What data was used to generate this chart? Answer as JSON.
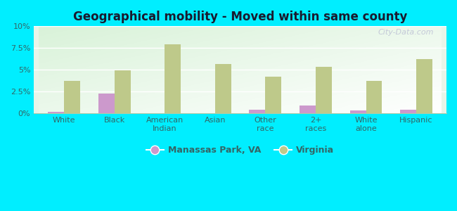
{
  "title": "Geographical mobility - Moved within same county",
  "categories": [
    "White",
    "Black",
    "American\nIndian",
    "Asian",
    "Other\nrace",
    "2+\nraces",
    "White\nalone",
    "Hispanic"
  ],
  "manassas_values": [
    0.2,
    2.3,
    0.0,
    0.0,
    0.4,
    0.9,
    0.3,
    0.4
  ],
  "virginia_values": [
    3.7,
    4.9,
    7.9,
    5.7,
    4.2,
    5.3,
    3.7,
    6.2
  ],
  "manassas_color": "#cc99cc",
  "virginia_color": "#bec98a",
  "background_color": "#00eeff",
  "ylim": [
    0,
    10
  ],
  "yticks": [
    0,
    2.5,
    5.0,
    7.5,
    10.0
  ],
  "ytick_labels": [
    "0%",
    "2.5%",
    "5%",
    "7.5%",
    "10%"
  ],
  "bar_width": 0.32,
  "legend_manassas": "Manassas Park, VA",
  "legend_virginia": "Virginia",
  "watermark": "City-Data.com"
}
